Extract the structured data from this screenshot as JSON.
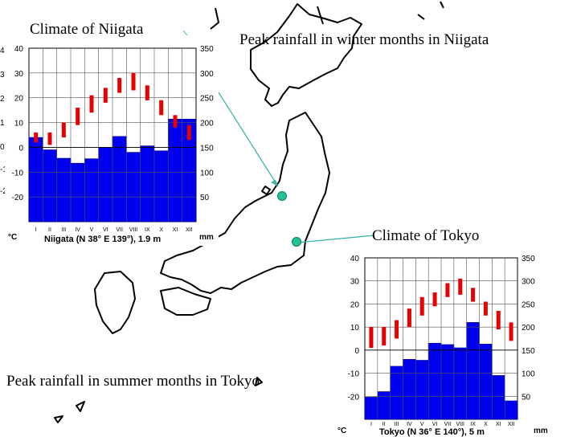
{
  "captions": {
    "niigata_title": "Climate of Niigata",
    "niigata_note": "Peak rainfall in winter months in Niigata",
    "tokyo_title": "Climate of Tokyo",
    "tokyo_note": "Peak rainfall in summer months in Tokyo"
  },
  "left_scale_fragments": [
    "4",
    "3",
    "2",
    "1(",
    "0",
    "-1",
    "-2"
  ],
  "colors": {
    "precip_bar": "#0000ee",
    "temp_bar": "#e60000",
    "station_marker": "#22c497",
    "pointer_line": "#33b3a3",
    "coastline": "#000000"
  },
  "chart_data": [
    {
      "type": "bar",
      "station": "Niigata",
      "caption_label": "Niigata (N 38° E 139°), 1.9 m",
      "categories": [
        "I",
        "II",
        "III",
        "IV",
        "V",
        "VI",
        "VII",
        "VIII",
        "IX",
        "X",
        "XI",
        "XII"
      ],
      "series": [
        {
          "kind": "precipitation",
          "values": [
            170,
            145,
            128,
            118,
            127,
            150,
            172,
            140,
            153,
            143,
            207,
            207
          ]
        },
        {
          "kind": "temperature_range",
          "low": [
            2,
            1,
            4,
            9,
            14,
            18,
            22,
            23,
            19,
            13,
            8,
            3
          ],
          "high": [
            6,
            6,
            10,
            16,
            21,
            24,
            28,
            30,
            25,
            19,
            13,
            9
          ]
        }
      ],
      "ylabel_left": "°C",
      "ylabel_right": "mm",
      "left_ticks": [
        "40",
        "30",
        "20",
        "10",
        "0",
        "-10",
        "-20"
      ],
      "right_ticks": [
        "350",
        "300",
        "250",
        "200",
        "150",
        "100",
        "50"
      ],
      "ylim_temp": [
        -30,
        40
      ],
      "ylim_precip": [
        0,
        350
      ],
      "grid": true
    },
    {
      "type": "bar",
      "station": "Tokyo",
      "caption_label": "Tokyo (N 36° E 140°), 5 m",
      "categories": [
        "I",
        "II",
        "III",
        "IV",
        "V",
        "VI",
        "VII",
        "VIII",
        "IX",
        "X",
        "XI",
        "XII"
      ],
      "series": [
        {
          "kind": "precipitation",
          "values": [
            48,
            60,
            115,
            130,
            128,
            165,
            162,
            155,
            210,
            163,
            95,
            40
          ]
        },
        {
          "kind": "temperature_range",
          "low": [
            1,
            2,
            5,
            10,
            15,
            19,
            23,
            24,
            21,
            15,
            9,
            4
          ],
          "high": [
            10,
            10,
            13,
            18,
            23,
            25,
            29,
            31,
            27,
            21,
            17,
            12
          ]
        }
      ],
      "ylabel_left": "°C",
      "ylabel_right": "mm",
      "left_ticks": [
        "40",
        "30",
        "20",
        "10",
        "0",
        "-10",
        "-20"
      ],
      "right_ticks": [
        "350",
        "300",
        "250",
        "200",
        "150",
        "100",
        "50"
      ],
      "ylim_temp": [
        -30,
        40
      ],
      "ylim_precip": [
        0,
        350
      ],
      "grid": true
    }
  ]
}
